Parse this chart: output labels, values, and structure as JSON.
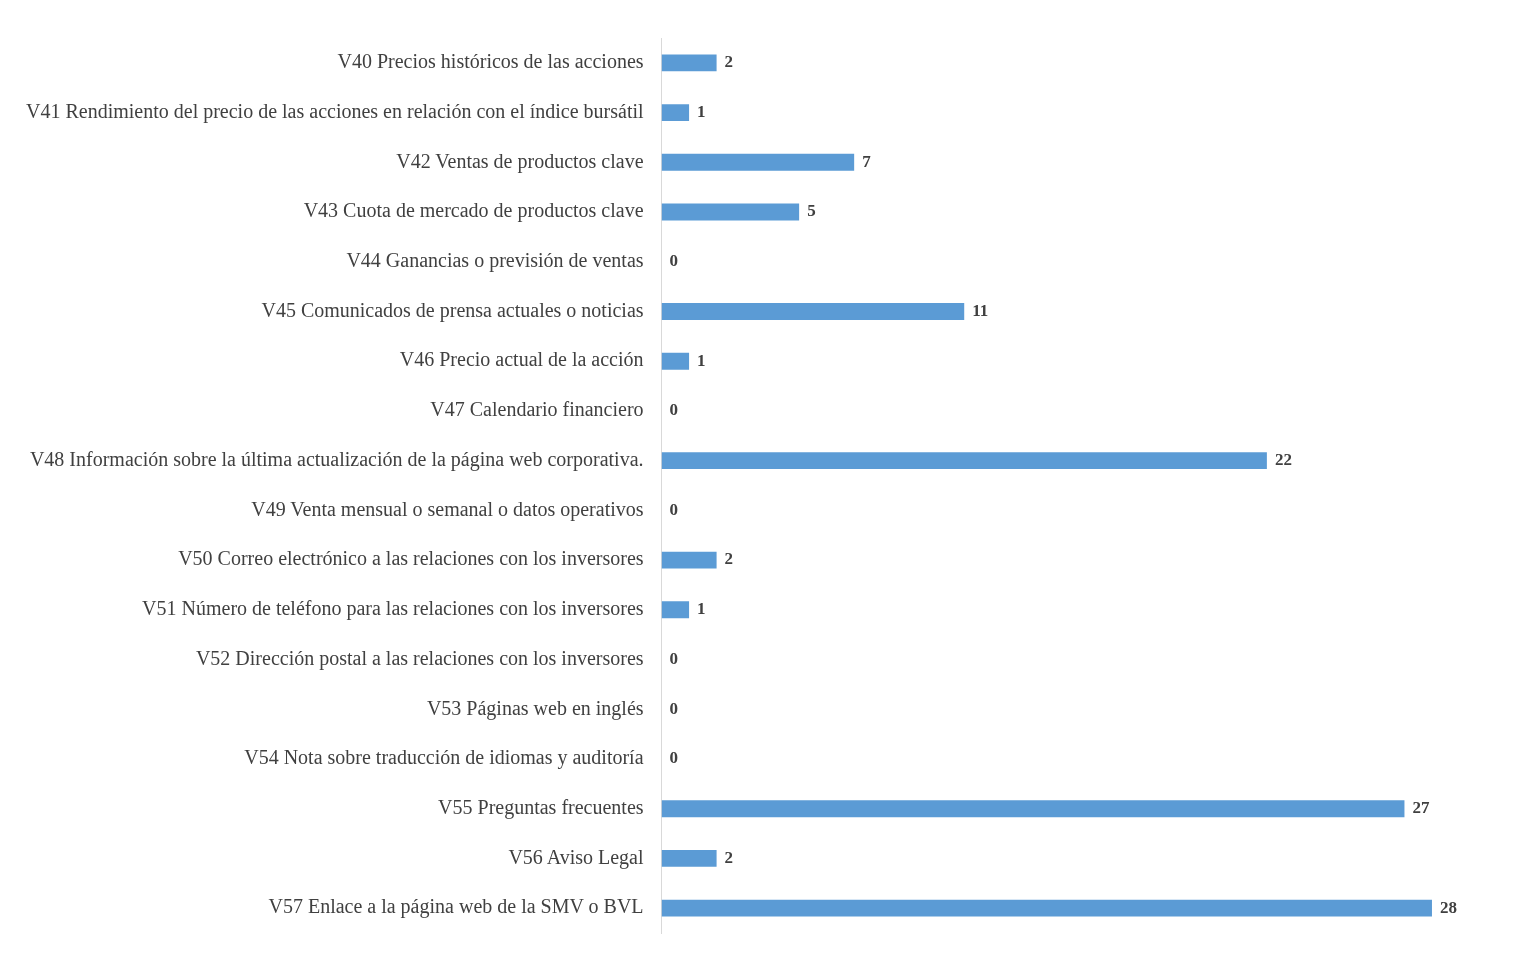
{
  "chart_data": {
    "type": "bar",
    "orientation": "horizontal",
    "categories": [
      "V40 Precios históricos de las acciones",
      "V41 Rendimiento del precio de las acciones en relación con el índice bursátil",
      "V42 Ventas de productos clave",
      "V43 Cuota de mercado de productos clave",
      "V44 Ganancias o previsión de ventas",
      "V45 Comunicados de prensa actuales o noticias",
      "V46 Precio actual de la acción",
      "V47 Calendario financiero",
      "V48 Información sobre la última actualización de la página web corporativa.",
      "V49 Venta mensual o semanal o datos operativos",
      "V50 Correo electrónico a las relaciones con los inversores",
      "V51 Número de teléfono para las relaciones con los inversores",
      "V52 Dirección postal a las relaciones con los inversores",
      "V53 Páginas web en inglés",
      "V54 Nota sobre traducción de idiomas y auditoría",
      "V55 Preguntas frecuentes",
      "V56 Aviso Legal",
      "V57 Enlace a la página web de la SMV o BVL"
    ],
    "values": [
      2,
      1,
      7,
      5,
      0,
      11,
      1,
      0,
      22,
      0,
      2,
      1,
      0,
      0,
      0,
      27,
      2,
      28
    ],
    "color": "#5b9bd5",
    "data_labels": true,
    "legend": false,
    "tick_labels": "y"
  }
}
